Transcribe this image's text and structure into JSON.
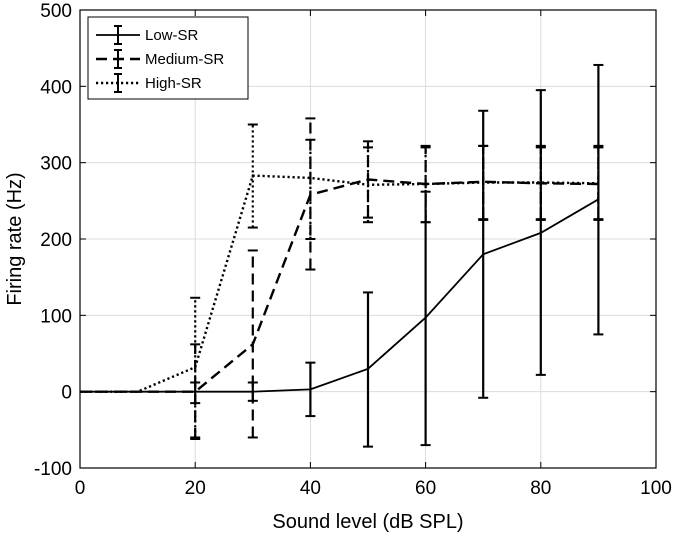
{
  "chart_data": {
    "type": "line",
    "title": "",
    "xlabel": "Sound level (dB SPL)",
    "ylabel": "Firing rate (Hz)",
    "xlim": [
      0,
      100
    ],
    "ylim": [
      -100,
      500
    ],
    "xticks": [
      0,
      20,
      40,
      60,
      80,
      100
    ],
    "yticks": [
      -100,
      0,
      100,
      200,
      300,
      400,
      500
    ],
    "xtick_labels": [
      "0",
      "20",
      "40",
      "60",
      "80",
      "100"
    ],
    "ytick_labels": [
      "-100",
      "0",
      "100",
      "200",
      "300",
      "400",
      "500"
    ],
    "grid": true,
    "legend_position": "top-left",
    "x": [
      0,
      10,
      20,
      30,
      40,
      50,
      60,
      70,
      80,
      90
    ],
    "series": [
      {
        "name": "Low-SR",
        "style": "solid",
        "values": [
          0,
          0,
          0,
          0,
          3,
          30,
          97,
          180,
          208,
          252
        ],
        "error_x": [
          20,
          30,
          40,
          50,
          60,
          70,
          80,
          90
        ],
        "error_low": [
          -15,
          -12,
          -32,
          -72,
          -70,
          -8,
          22,
          75
        ],
        "error_high": [
          12,
          12,
          38,
          130,
          262,
          368,
          395,
          428
        ]
      },
      {
        "name": "Medium-SR",
        "style": "dashed",
        "values": [
          0,
          0,
          0,
          62,
          258,
          278,
          272,
          275,
          273,
          272
        ],
        "error_x": [
          20,
          30,
          40,
          50,
          60,
          70,
          80,
          90
        ],
        "error_low": [
          -62,
          -60,
          160,
          228,
          222,
          225,
          225,
          225
        ],
        "error_high": [
          62,
          185,
          358,
          328,
          322,
          322,
          322,
          322
        ]
      },
      {
        "name": "High-SR",
        "style": "dotted",
        "values": [
          0,
          0,
          32,
          283,
          280,
          271,
          272,
          274,
          274,
          273
        ],
        "error_x": [
          20,
          30,
          40,
          50,
          60,
          70,
          80,
          90
        ],
        "error_low": [
          -60,
          215,
          200,
          222,
          222,
          226,
          226,
          226
        ],
        "error_high": [
          123,
          350,
          330,
          320,
          320,
          322,
          320,
          320
        ]
      }
    ]
  }
}
